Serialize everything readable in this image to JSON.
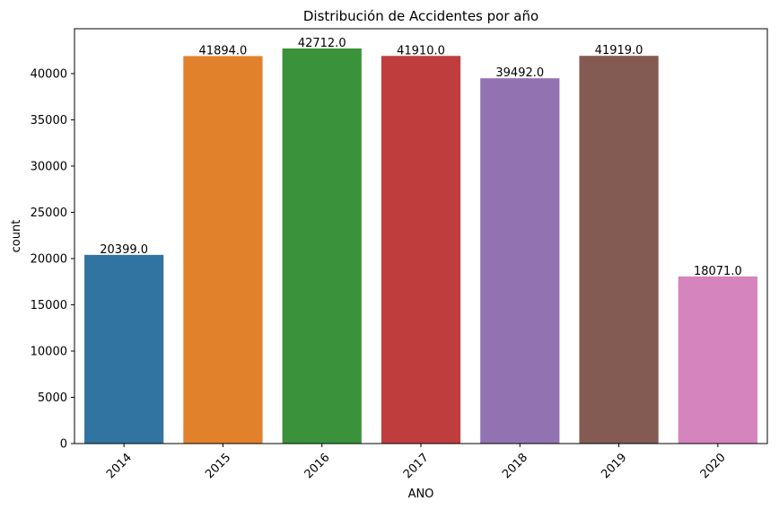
{
  "chart_data": {
    "type": "bar",
    "title": "Distribución de Accidentes por año",
    "xlabel": "ANO",
    "ylabel": "count",
    "categories": [
      "2014",
      "2015",
      "2016",
      "2017",
      "2018",
      "2019",
      "2020"
    ],
    "values": [
      20399,
      41894,
      42712,
      41910,
      39492,
      41919,
      18071
    ],
    "data_labels": [
      "20399.0",
      "41894.0",
      "42712.0",
      "41910.0",
      "39492.0",
      "41919.0",
      "18071.0"
    ],
    "colors": [
      "#3274a1",
      "#e1812c",
      "#3a923a",
      "#c03d3e",
      "#9372b2",
      "#845b53",
      "#d684bd"
    ],
    "yticks": [
      0,
      5000,
      10000,
      15000,
      20000,
      25000,
      30000,
      35000,
      40000
    ],
    "ytick_labels": [
      "0",
      "5000",
      "10000",
      "15000",
      "20000",
      "25000",
      "30000",
      "35000",
      "40000"
    ],
    "ylim": [
      0,
      44848
    ],
    "x_tick_rotation_deg": 45,
    "grid": false,
    "legend": "none"
  }
}
